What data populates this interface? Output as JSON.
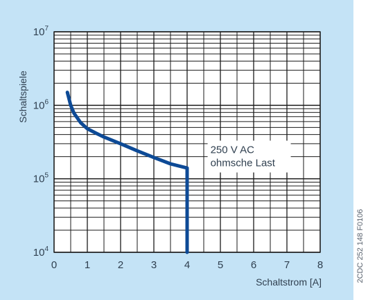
{
  "chart_data": {
    "type": "line",
    "title": "",
    "xlabel": "Schaltstrom [A]",
    "ylabel": "Schaltspiele",
    "y_scale": "log",
    "xlim": [
      0,
      8
    ],
    "ylim": [
      10000,
      10000000
    ],
    "x_ticks": [
      "0",
      "1",
      "2",
      "3",
      "4",
      "5",
      "6",
      "7",
      "8"
    ],
    "y_ticks": [
      {
        "base": "10",
        "exp": "4",
        "value": 10000
      },
      {
        "base": "10",
        "exp": "5",
        "value": 100000
      },
      {
        "base": "10",
        "exp": "6",
        "value": 1000000
      },
      {
        "base": "10",
        "exp": "7",
        "value": 10000000
      }
    ],
    "grid": true,
    "series": [
      {
        "color": "#0d4a96",
        "points": [
          [
            0.4,
            1500000
          ],
          [
            0.5,
            1000000
          ],
          [
            0.6,
            780000
          ],
          [
            0.8,
            580000
          ],
          [
            1.0,
            480000
          ],
          [
            1.25,
            420000
          ],
          [
            1.5,
            370000
          ],
          [
            2.0,
            300000
          ],
          [
            2.5,
            240000
          ],
          [
            3.0,
            195000
          ],
          [
            3.5,
            160000
          ],
          [
            4.0,
            140000
          ],
          [
            4.0,
            10000
          ]
        ]
      }
    ],
    "annotations": [
      {
        "lines": [
          "250 V AC",
          "ohmsche Last"
        ],
        "x": 4.7,
        "y": 290000
      }
    ]
  },
  "figure_code": "2CDC 252 148 F0106",
  "colors": {
    "panel": "#c4e3f6",
    "plot": "#ffffff",
    "grid": "#1a1a1a",
    "curve": "#0d4a96",
    "text": "#2f3f4f"
  }
}
